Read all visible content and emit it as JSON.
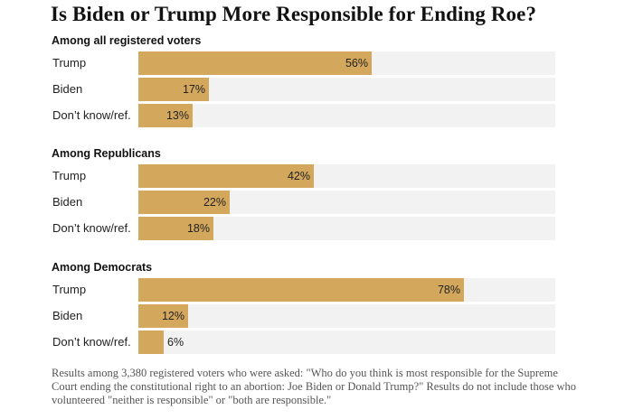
{
  "title": "Is Biden or Trump More Responsible for Ending Roe?",
  "note": "Results among 3,380 registered voters who were asked: \"Who do you think is most responsible for the Supreme Court ending the constitutional right to an abortion: Joe Biden or Donald Trump?\" Results do not include those who volunteered \"neither is responsible\" or \"both are responsible.\"",
  "colors": {
    "bar": "#d4a85c",
    "track": "#f2f2f2"
  },
  "chart_data": {
    "type": "bar",
    "orientation": "horizontal",
    "title": "Is Biden or Trump More Responsible for Ending Roe?",
    "categories": [
      "Trump",
      "Biden",
      "Don’t know/ref."
    ],
    "xlim": [
      0,
      100
    ],
    "unit": "%",
    "groups": [
      {
        "name": "Among all registered voters",
        "rows": [
          {
            "label": "Trump",
            "value": 56,
            "display": "56%"
          },
          {
            "label": "Biden",
            "value": 17,
            "display": "17%"
          },
          {
            "label": "Don’t know/ref.",
            "value": 13,
            "display": "13%"
          }
        ]
      },
      {
        "name": "Among Republicans",
        "rows": [
          {
            "label": "Trump",
            "value": 42,
            "display": "42%"
          },
          {
            "label": "Biden",
            "value": 22,
            "display": "22%"
          },
          {
            "label": "Don’t know/ref.",
            "value": 18,
            "display": "18%"
          }
        ]
      },
      {
        "name": "Among Democrats",
        "rows": [
          {
            "label": "Trump",
            "value": 78,
            "display": "78%"
          },
          {
            "label": "Biden",
            "value": 12,
            "display": "12%"
          },
          {
            "label": "Don’t know/ref.",
            "value": 6,
            "display": "6%"
          }
        ]
      }
    ]
  }
}
